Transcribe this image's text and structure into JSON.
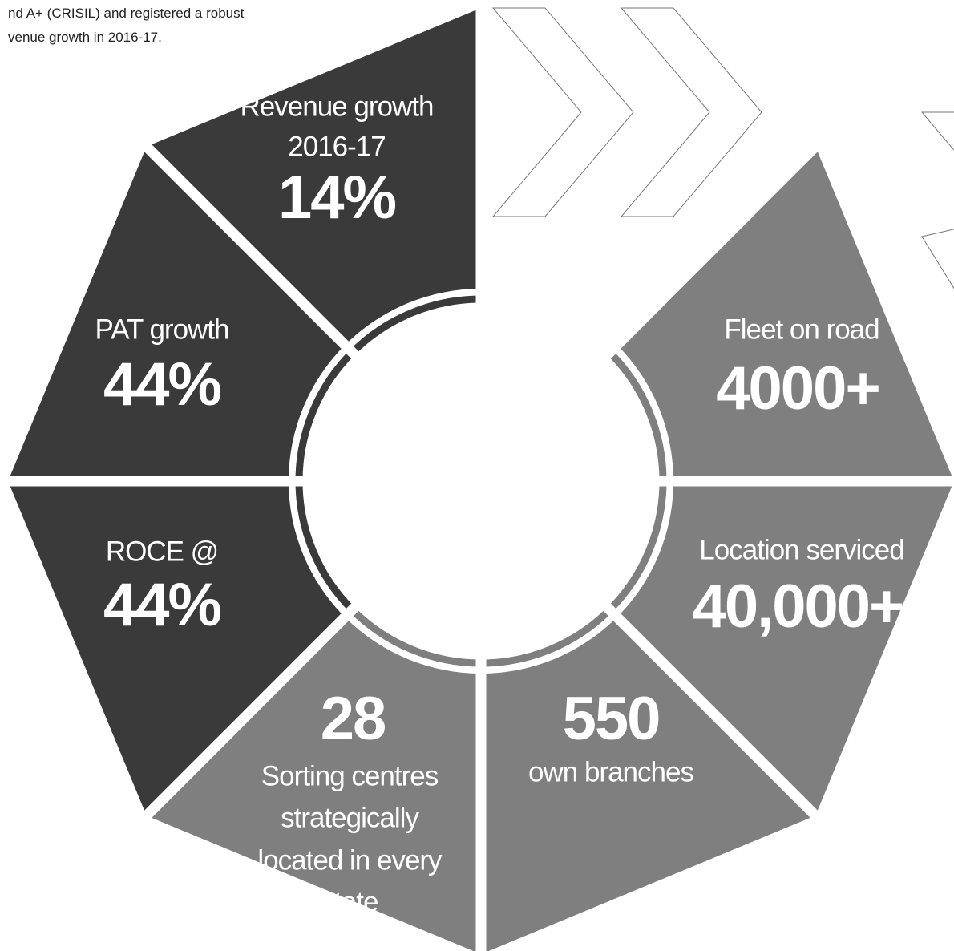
{
  "intro": [
    "nd A+ (CRISIL) and registered a robust",
    "venue growth in 2016-17."
  ],
  "segments": [
    {
      "lines": [
        "Revenue growth",
        "2016-17"
      ],
      "value": "14%"
    },
    {
      "lines": [
        "PAT growth"
      ],
      "value": "44%"
    },
    {
      "lines": [
        "ROCE @"
      ],
      "value": "44%"
    },
    {
      "lines": [
        "Sorting centres",
        "strategically",
        "located in every",
        "state"
      ],
      "value": "28"
    },
    {
      "lines": [
        "own branches"
      ],
      "value": "550"
    },
    {
      "lines": [
        "Location serviced"
      ],
      "value": "40,000+"
    },
    {
      "lines": [
        "Fleet on road"
      ],
      "value": "4000+"
    }
  ]
}
